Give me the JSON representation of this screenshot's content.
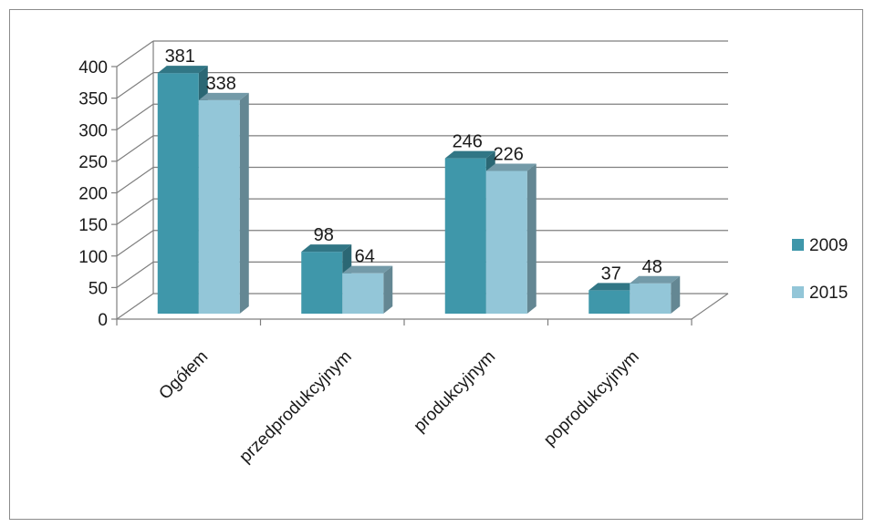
{
  "chart_data": {
    "type": "bar",
    "title": "",
    "xlabel": "",
    "ylabel": "",
    "categories": [
      "Ogółem",
      "przedprodukcyjnym",
      "produkcyjnym",
      "poprodukcyjnym"
    ],
    "series": [
      {
        "name": "2009",
        "values": [
          381,
          98,
          246,
          37
        ],
        "color": "#3f97aa"
      },
      {
        "name": "2015",
        "values": [
          338,
          64,
          226,
          48
        ],
        "color": "#93c6d8"
      }
    ],
    "ylim": [
      0,
      400
    ],
    "yticks": [
      0,
      50,
      100,
      150,
      200,
      250,
      300,
      350,
      400
    ],
    "grid": true,
    "legend": "right",
    "three_d": true
  }
}
